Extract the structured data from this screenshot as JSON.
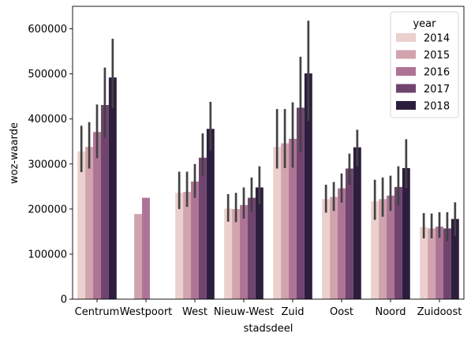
{
  "chart_data": {
    "type": "bar",
    "xlabel": "stadsdeel",
    "ylabel": "woz-waarde",
    "ylim": [
      0,
      650000
    ],
    "yticks": [
      0,
      100000,
      200000,
      300000,
      400000,
      500000,
      600000
    ],
    "grid": false,
    "legend": {
      "title": "year",
      "placement": "top-right"
    },
    "categories": [
      "Centrum",
      "Westpoort",
      "West",
      "Nieuw-West",
      "Zuid",
      "Oost",
      "Noord",
      "Zuidoost"
    ],
    "series": [
      {
        "name": "2014",
        "color": "#ebd0cd",
        "values": [
          328000,
          null,
          236000,
          201000,
          338000,
          222000,
          217000,
          160000
        ],
        "error": [
          [
            282000,
            385000
          ],
          null,
          [
            200000,
            283000
          ],
          [
            172000,
            233000
          ],
          [
            290000,
            422000
          ],
          [
            192000,
            254000
          ],
          [
            176000,
            265000
          ],
          [
            135000,
            191000
          ]
        ]
      },
      {
        "name": "2015",
        "color": "#d1a3ad",
        "values": [
          338000,
          189000,
          238000,
          200000,
          346000,
          227000,
          222000,
          157000
        ],
        "error": [
          [
            290000,
            393000
          ],
          null,
          [
            205000,
            283000
          ],
          [
            171000,
            236000
          ],
          [
            291000,
            422000
          ],
          [
            196000,
            260000
          ],
          [
            183000,
            270000
          ],
          [
            135000,
            190000
          ]
        ]
      },
      {
        "name": "2016",
        "color": "#ae7495",
        "values": [
          371000,
          225000,
          261000,
          209000,
          356000,
          246000,
          230000,
          161000
        ],
        "error": [
          [
            313000,
            432000
          ],
          null,
          [
            225000,
            300000
          ],
          [
            179000,
            248000
          ],
          [
            292000,
            437000
          ],
          [
            214000,
            279000
          ],
          [
            196000,
            274000
          ],
          [
            136000,
            193000
          ]
        ]
      },
      {
        "name": "2017",
        "color": "#70446f",
        "values": [
          431000,
          null,
          314000,
          225000,
          425000,
          290000,
          249000,
          157000
        ],
        "error": [
          [
            358000,
            514000
          ],
          null,
          [
            274000,
            368000
          ],
          [
            194000,
            270000
          ],
          [
            327000,
            538000
          ],
          [
            254000,
            323000
          ],
          [
            208000,
            295000
          ],
          [
            128000,
            193000
          ]
        ]
      },
      {
        "name": "2018",
        "color": "#2d1e3e",
        "values": [
          492000,
          null,
          378000,
          248000,
          501000,
          337000,
          291000,
          178000
        ],
        "error": [
          [
            424000,
            578000
          ],
          null,
          [
            330000,
            438000
          ],
          [
            211000,
            295000
          ],
          [
            396000,
            618000
          ],
          [
            295000,
            376000
          ],
          [
            247000,
            355000
          ],
          [
            140000,
            215000
          ]
        ]
      }
    ]
  }
}
